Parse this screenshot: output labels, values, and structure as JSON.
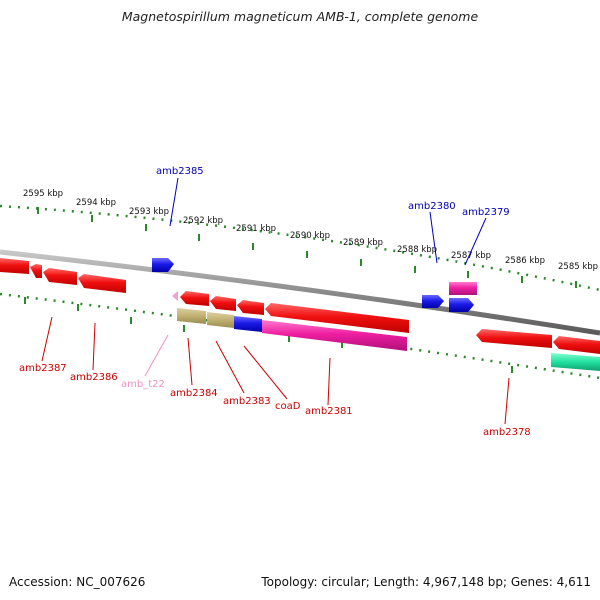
{
  "title": "Magnetospirillum magneticum AMB-1, complete genome",
  "footer": {
    "accession": "Accession: NC_007626",
    "topology": "Topology: circular; Length: 4,967,148 bp; Genes: 4,611"
  },
  "colors": {
    "backbone": "#8a8a8a",
    "tick": "#2a8a2a",
    "gene_red": "#f01010",
    "gene_blue": "#1a1ae8",
    "gene_magenta": "#ee1fa0",
    "gene_olive": "#c0b070",
    "gene_teal": "#20e0a0",
    "gene_pink_small": "#f0a0d0",
    "label_red": "#cc0000",
    "label_blue": "#0000bb",
    "label_pink": "#f090c0"
  },
  "scale_labels": [
    "2595 kbp",
    "2594 kbp",
    "2593 kbp",
    "2592 kbp",
    "2591 kbp",
    "2590 kbp",
    "2589 kbp",
    "2588 kbp",
    "2587 kbp",
    "2586 kbp",
    "2585 kbp"
  ],
  "genes_top": [
    {
      "label": "amb2385",
      "color": "gene_blue"
    },
    {
      "label": "amb2380",
      "color": "gene_blue"
    },
    {
      "label": "amb2379",
      "color": "gene_magenta"
    }
  ],
  "genes_bottom": [
    {
      "label": "amb2387",
      "color": "gene_red"
    },
    {
      "label": "amb2386",
      "color": "gene_red"
    },
    {
      "label": "amb_t22",
      "color": "gene_pink_small"
    },
    {
      "label": "amb2384",
      "color": "gene_olive"
    },
    {
      "label": "amb2383",
      "color": "gene_olive"
    },
    {
      "label": "coaD",
      "color": "gene_blue"
    },
    {
      "label": "amb2381",
      "color": "gene_magenta"
    },
    {
      "label": "amb2378",
      "color": "gene_teal"
    }
  ]
}
